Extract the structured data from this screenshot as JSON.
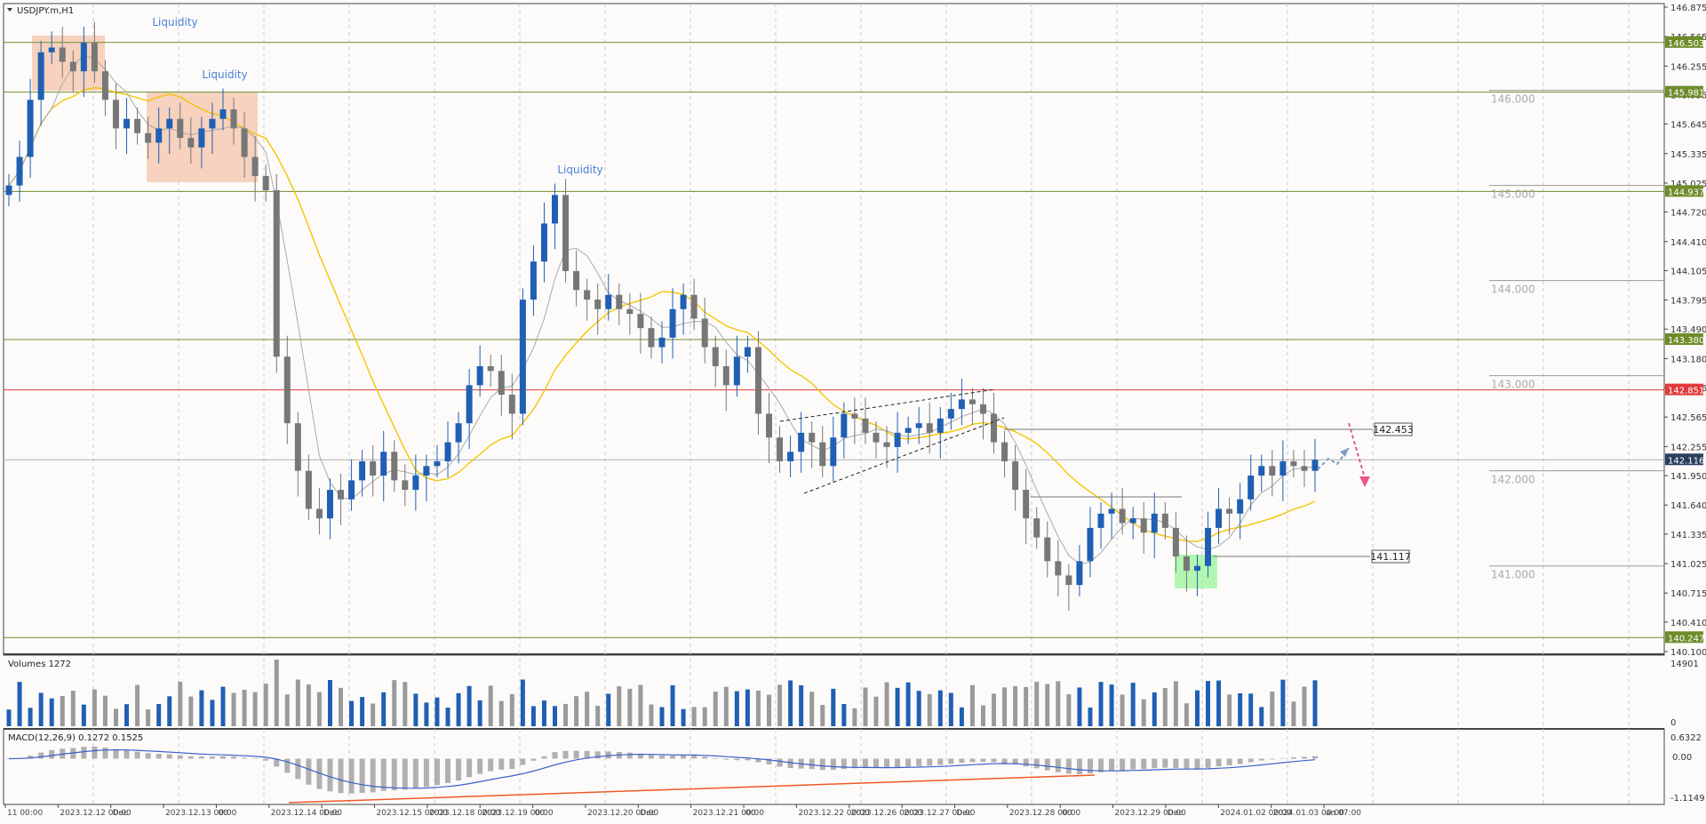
{
  "window": {
    "symbol_label": "USDJPY.m,H1"
  },
  "colors": {
    "background": "#fdfbfa",
    "grid": "#c8c8c8",
    "bull_candle": "#1f5fb4",
    "bear_candle": "#777777",
    "ma_fast": "#a9a9a9",
    "ma_slow": "#f5c400",
    "level_line": "#6d8c2a",
    "resistance_line": "#e03a3a",
    "liquidity_text": "#4a7fd6",
    "macd_line": "#3a5fcd",
    "macd_divergence": "#f05a28",
    "projection_up": "#7aa0c8",
    "projection_down": "#e8578a",
    "liquidity_zone": "#f4c8b0",
    "support_zone": "#9ff59f"
  },
  "annotations": {
    "liquidity_1": "Liquidity",
    "liquidity_2": "Liquidity",
    "liquidity_3": "Liquidity",
    "target_label": "142.453",
    "support_label": "141.117"
  },
  "price_axis": {
    "ticks": [
      "146.875",
      "146.565",
      "146.255",
      "145.955",
      "145.645",
      "145.335",
      "145.025",
      "144.720",
      "144.410",
      "144.105",
      "143.795",
      "143.490",
      "143.180",
      "142.875",
      "142.565",
      "142.255",
      "141.950",
      "141.640",
      "141.335",
      "141.025",
      "140.715",
      "140.410",
      "140.100"
    ],
    "round_levels": [
      "146.000",
      "145.000",
      "144.000",
      "143.000",
      "142.000",
      "141.000"
    ],
    "boxed_levels": [
      {
        "label": "146.503",
        "color": "#6d8c2a"
      },
      {
        "label": "145.981",
        "color": "#6d8c2a"
      },
      {
        "label": "144.937",
        "color": "#6d8c2a"
      },
      {
        "label": "143.380",
        "color": "#6d8c2a"
      },
      {
        "label": "142.851",
        "color": "#e03a3a"
      },
      {
        "label": "142.116",
        "color": "#2a3f5f"
      },
      {
        "label": "140.247",
        "color": "#6d8c2a"
      }
    ]
  },
  "volume_panel": {
    "label": "Volumes 1272",
    "axis_max": "14901",
    "axis_min": "0"
  },
  "macd_panel": {
    "label": "MACD(12,26,9) 0.1272 0.1525",
    "axis_max": "0.6322",
    "axis_zero": "0.00",
    "axis_min": "-1.1149"
  },
  "time_axis": {
    "labels": [
      "11 00:00",
      "2023.12.12 00:00",
      "Dec",
      "2023.12.13 00:00",
      "00",
      "2023.12.14 00:00",
      "Dec",
      "2023.12.15 00:00",
      "2023.12.18 00:00",
      "2023.12.19 00:00",
      "00",
      "2023.12.20 00:00",
      "Dec",
      "2023.12.21 00:00",
      "00",
      "2023.12.22 00:00",
      "2023.12.26 00:00",
      "2023.12.27 00:00",
      "Dec",
      "2023.12.28 00:00",
      "00",
      "2023.12.29 00:00",
      "Dec",
      "2024.01.02 00:00",
      "2024.01.03 00:00",
      "an 07:00"
    ]
  },
  "chart_data": {
    "type": "candlestick",
    "title": "USDJPY.m,H1",
    "symbol": "USDJPY.m",
    "timeframe": "H1",
    "ylim": [
      140.1,
      146.875
    ],
    "series_close": [
      145.0,
      145.3,
      145.9,
      146.4,
      146.45,
      146.3,
      146.2,
      146.5,
      146.2,
      145.9,
      145.6,
      145.7,
      145.55,
      145.45,
      145.6,
      145.7,
      145.5,
      145.4,
      145.6,
      145.7,
      145.8,
      145.6,
      145.3,
      145.1,
      144.95,
      143.2,
      142.5,
      142.0,
      141.6,
      141.5,
      141.8,
      141.7,
      141.9,
      142.1,
      141.95,
      142.2,
      141.9,
      141.8,
      141.95,
      142.05,
      142.1,
      142.3,
      142.5,
      142.9,
      143.1,
      143.05,
      142.8,
      142.6,
      143.8,
      144.2,
      144.6,
      144.9,
      144.1,
      143.9,
      143.8,
      143.7,
      143.85,
      143.7,
      143.65,
      143.5,
      143.3,
      143.4,
      143.7,
      143.85,
      143.6,
      143.3,
      143.1,
      142.9,
      143.2,
      143.3,
      142.6,
      142.35,
      142.1,
      142.2,
      142.4,
      142.3,
      142.05,
      142.35,
      142.6,
      142.55,
      142.4,
      142.3,
      142.25,
      142.4,
      142.45,
      142.5,
      142.4,
      142.55,
      142.65,
      142.75,
      142.7,
      142.6,
      142.3,
      142.1,
      141.8,
      141.5,
      141.3,
      141.05,
      140.9,
      140.8,
      141.05,
      141.4,
      141.55,
      141.6,
      141.45,
      141.5,
      141.35,
      141.55,
      141.4,
      141.1,
      140.95,
      141.0,
      141.4,
      141.6,
      141.55,
      141.7,
      141.95,
      142.05,
      141.95,
      142.1,
      142.05,
      142.0,
      142.116
    ],
    "levels": [
      146.503,
      145.981,
      144.937,
      143.38,
      142.851,
      140.247
    ],
    "annotation_levels": {
      "target": 142.453,
      "support": 141.117
    },
    "volume_max": 14901,
    "macd_range": [
      -1.1149,
      0.6322
    ],
    "macd_current": [
      0.1272,
      0.1525
    ],
    "xlabel": "",
    "ylabel": ""
  }
}
